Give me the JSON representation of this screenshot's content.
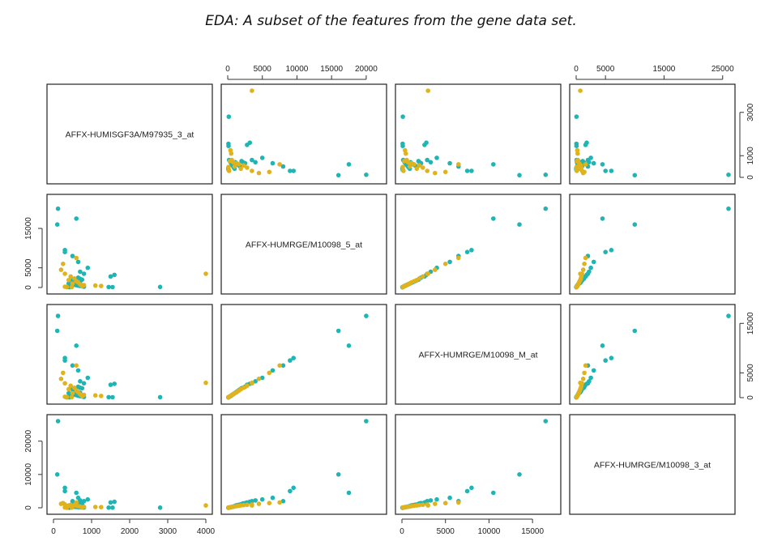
{
  "title": "EDA: A subset of the features from the gene data set.",
  "colors": {
    "class_a": "#1fb5b4",
    "class_b": "#e0b21c",
    "axis": "#333333",
    "panel_border": "#222222"
  },
  "chart_data": {
    "type": "scatter",
    "subtype": "pairs-matrix",
    "variables": [
      "AFFX-HUMISGF3A/M97935_3_at",
      "AFFX-HUMRGE/M10098_5_at",
      "AFFX-HUMRGE/M10098_M_at",
      "AFFX-HUMRGE/M10098_3_at"
    ],
    "ranges": [
      [
        0,
        4000
      ],
      [
        0,
        22000
      ],
      [
        0,
        17500
      ],
      [
        0,
        26000
      ]
    ],
    "ticks": [
      [
        0,
        1000,
        2000,
        3000,
        4000
      ],
      [
        0,
        5000,
        10000,
        15000,
        20000
      ],
      [
        0,
        5000,
        10000,
        15000
      ],
      [
        0,
        10000,
        20000
      ]
    ],
    "axis_labels": {
      "top": [
        null,
        {
          "ticks": [
            0,
            5000,
            10000,
            15000,
            20000
          ]
        },
        null,
        {
          "ticks": [
            0,
            5000,
            15000,
            25000
          ]
        }
      ],
      "right": [
        {
          "ticks": [
            0,
            1000,
            3000
          ]
        },
        null,
        {
          "ticks": [
            0,
            5000,
            15000
          ]
        },
        null
      ],
      "bottom": [
        {
          "ticks": [
            0,
            1000,
            2000,
            3000,
            4000
          ]
        },
        null,
        {
          "ticks": [
            0,
            5000,
            10000,
            15000
          ]
        },
        null
      ],
      "left": [
        null,
        {
          "ticks": [
            0,
            5000,
            15000
          ]
        },
        null,
        {
          "ticks": [
            0,
            10000,
            20000
          ]
        }
      ]
    },
    "series": [
      {
        "class": "a",
        "points": [
          [
            120,
            20000,
            16500,
            26000
          ],
          [
            100,
            16000,
            13500,
            10000
          ],
          [
            600,
            17500,
            10500,
            4500
          ],
          [
            300,
            9500,
            8000,
            6000
          ],
          [
            300,
            9000,
            7500,
            5000
          ],
          [
            500,
            8000,
            6500,
            2000
          ],
          [
            650,
            6500,
            5500,
            3000
          ],
          [
            900,
            5000,
            4000,
            2500
          ],
          [
            700,
            4000,
            3300,
            2200
          ],
          [
            800,
            3500,
            2900,
            2000
          ],
          [
            1600,
            3200,
            2800,
            1800
          ],
          [
            1500,
            2800,
            2600,
            1600
          ],
          [
            650,
            2500,
            2200,
            1400
          ],
          [
            700,
            2200,
            2000,
            1300
          ],
          [
            750,
            2000,
            1900,
            1100
          ],
          [
            500,
            1800,
            1700,
            1000
          ],
          [
            550,
            1600,
            1500,
            900
          ],
          [
            600,
            1400,
            1300,
            800
          ],
          [
            650,
            1200,
            1100,
            700
          ],
          [
            700,
            1100,
            1000,
            600
          ],
          [
            400,
            1000,
            900,
            500
          ],
          [
            450,
            900,
            800,
            400
          ],
          [
            500,
            800,
            700,
            350
          ],
          [
            550,
            700,
            600,
            300
          ],
          [
            600,
            600,
            500,
            250
          ],
          [
            650,
            500,
            400,
            200
          ],
          [
            700,
            400,
            300,
            150
          ],
          [
            750,
            300,
            250,
            100
          ],
          [
            800,
            200,
            150,
            80
          ],
          [
            2800,
            150,
            100,
            60
          ],
          [
            1450,
            120,
            90,
            50
          ],
          [
            1550,
            100,
            80,
            40
          ],
          [
            350,
            100,
            70,
            30
          ],
          [
            420,
            90,
            60,
            20
          ]
        ]
      },
      {
        "class": "b",
        "points": [
          [
            4000,
            3500,
            3000,
            700
          ],
          [
            600,
            7500,
            6500,
            1600
          ],
          [
            250,
            6000,
            5000,
            1400
          ],
          [
            200,
            4500,
            3800,
            1200
          ],
          [
            300,
            3500,
            2900,
            1000
          ],
          [
            450,
            2800,
            2400,
            900
          ],
          [
            550,
            2300,
            2000,
            800
          ],
          [
            400,
            1900,
            1700,
            700
          ],
          [
            600,
            1600,
            1400,
            600
          ],
          [
            650,
            1300,
            1100,
            500
          ],
          [
            500,
            1000,
            900,
            400
          ],
          [
            700,
            800,
            700,
            350
          ],
          [
            800,
            600,
            550,
            300
          ],
          [
            1100,
            500,
            450,
            250
          ],
          [
            1250,
            400,
            350,
            200
          ],
          [
            750,
            300,
            280,
            150
          ],
          [
            300,
            200,
            180,
            100
          ],
          [
            350,
            150,
            120,
            80
          ],
          [
            480,
            100,
            90,
            50
          ]
        ]
      }
    ]
  }
}
